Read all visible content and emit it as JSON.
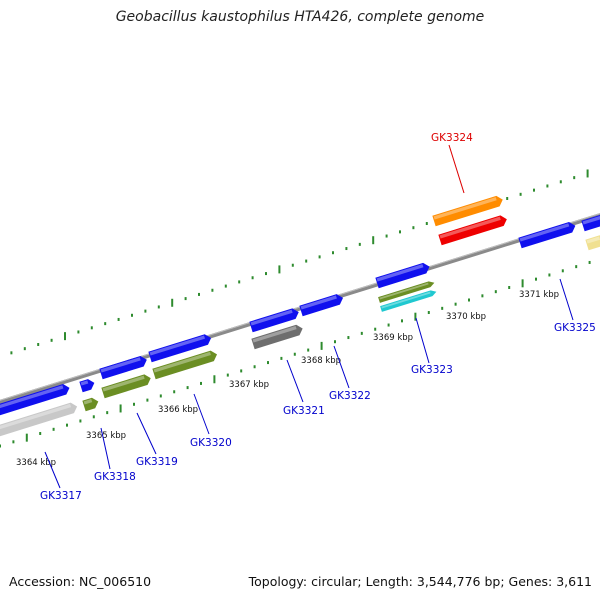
{
  "title": "Geobacillus kaustophilus HTA426, complete genome",
  "accession": "Accession: NC_006510",
  "summary": "Topology: circular; Length: 3,544,776 bp; Genes: 3,611",
  "colors": {
    "backbone": "#8a8a8a",
    "tick_green": "#2e8b2e",
    "forward_gene": "#1010ee",
    "olive": "#6b8e23",
    "gray": "#6e6e6e",
    "light_gray": "#c8c8c8",
    "cyan": "#20c8d0",
    "orange": "#ff8c00",
    "red": "#ee0000",
    "cream": "#f0e090",
    "label_blue": "#0000cc",
    "label_red": "#dd0000"
  },
  "scale_labels": [
    "3364 kbp",
    "3365 kbp",
    "3366 kbp",
    "3367 kbp",
    "3368 kbp",
    "3369 kbp",
    "3370 kbp",
    "3371 kbp"
  ],
  "gene_labels": [
    {
      "name": "GK3317",
      "highlight": false
    },
    {
      "name": "GK3318",
      "highlight": false
    },
    {
      "name": "GK3319",
      "highlight": false
    },
    {
      "name": "GK3320",
      "highlight": false
    },
    {
      "name": "GK3321",
      "highlight": false
    },
    {
      "name": "GK3322",
      "highlight": false
    },
    {
      "name": "GK3323",
      "highlight": false
    },
    {
      "name": "GK3324",
      "highlight": true
    },
    {
      "name": "GK3325",
      "highlight": false
    }
  ]
}
